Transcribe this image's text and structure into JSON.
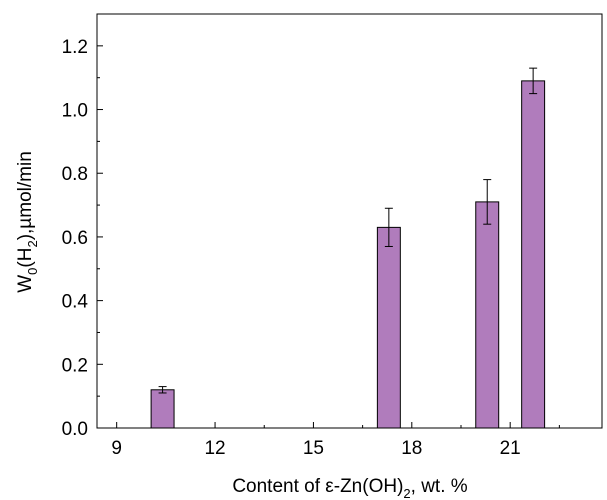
{
  "chart_data": {
    "type": "bar",
    "title": "",
    "xlabel": "Content of ε-Zn(OH)₂, wt. %",
    "ylabel": "W₀(H₂),µmol/min",
    "xlim": [
      8.4,
      23.8
    ],
    "ylim": [
      0,
      1.3
    ],
    "xticks": [
      9,
      12,
      15,
      18,
      21
    ],
    "yticks": [
      0.0,
      0.2,
      0.4,
      0.6,
      0.8,
      1.0,
      1.2
    ],
    "xtick_labels": [
      "9",
      "12",
      "15",
      "18",
      "21"
    ],
    "ytick_labels": [
      "0.0",
      "0.2",
      "0.4",
      "0.6",
      "0.8",
      "1.0",
      "1.2"
    ],
    "bar_width": 0.7,
    "bar_color": "#b07cbc",
    "edge_color": "#000000",
    "grid": false,
    "x": [
      10.4,
      17.3,
      20.3,
      21.7
    ],
    "values": [
      0.12,
      0.63,
      0.71,
      1.09
    ],
    "errors": [
      0.01,
      0.06,
      0.07,
      0.04
    ]
  }
}
